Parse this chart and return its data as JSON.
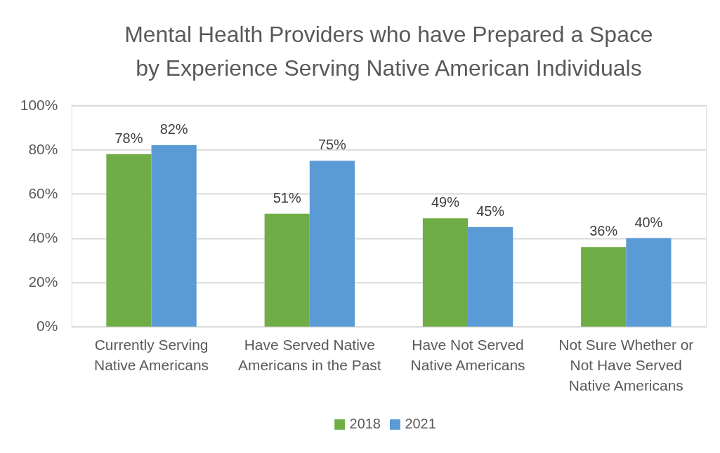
{
  "chart_data": {
    "type": "bar",
    "title": "Mental Health Providers who have Prepared a Space by Experience Serving Native American Individuals",
    "categories": [
      "Currently Serving Native Americans",
      "Have Served Native Americans in the Past",
      "Have Not Served Native Americans",
      "Not Sure Whether or Not Have Served Native Americans"
    ],
    "series": [
      {
        "name": "2018",
        "color": "#70ad47",
        "values": [
          78,
          51,
          49,
          36
        ],
        "value_labels": [
          "78%",
          "51%",
          "49%",
          "36%"
        ]
      },
      {
        "name": "2021",
        "color": "#5b9bd5",
        "values": [
          82,
          75,
          45,
          40
        ],
        "value_labels": [
          "82%",
          "75%",
          "45%",
          "40%"
        ]
      }
    ],
    "ylim": [
      0,
      100
    ],
    "yticks": [
      {
        "value": 0,
        "label": "0%"
      },
      {
        "value": 20,
        "label": "20%"
      },
      {
        "value": 40,
        "label": "40%"
      },
      {
        "value": 60,
        "label": "60%"
      },
      {
        "value": 80,
        "label": "80%"
      },
      {
        "value": 100,
        "label": "100%"
      }
    ],
    "grid": "y",
    "legend": "bottom"
  }
}
